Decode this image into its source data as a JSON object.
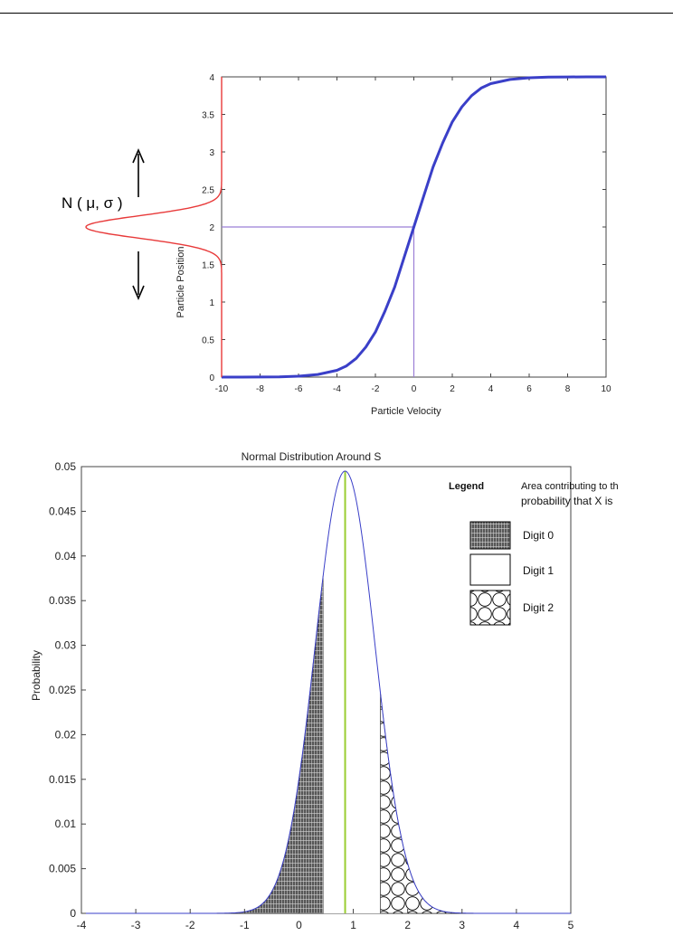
{
  "chart_data": [
    {
      "type": "line",
      "title": "",
      "xlabel": "Particle Velocity",
      "ylabel": "Particle Position",
      "xlim": [
        -10,
        10
      ],
      "ylim": [
        0,
        4
      ],
      "x_ticks": [
        "-10",
        "-8",
        "-6",
        "-4",
        "-2",
        "0",
        "2",
        "4",
        "6",
        "8",
        "10"
      ],
      "y_ticks": [
        "0",
        "0.5",
        "1",
        "1.5",
        "2",
        "2.5",
        "3",
        "3.5",
        "4"
      ],
      "grid": false,
      "series": [
        {
          "x": [
            -10,
            -9,
            -8,
            -7,
            -6,
            -5,
            -4,
            -3.5,
            -3,
            -2.5,
            -2,
            -1.5,
            -1,
            -0.5,
            0,
            0.5,
            1,
            1.5,
            2,
            2.5,
            3,
            3.5,
            4,
            5,
            6,
            7,
            8,
            9,
            10
          ],
          "y": [
            0,
            0,
            0.001,
            0.004,
            0.012,
            0.035,
            0.09,
            0.15,
            0.25,
            0.4,
            0.6,
            0.88,
            1.2,
            1.6,
            2.0,
            2.4,
            2.8,
            3.12,
            3.4,
            3.6,
            3.75,
            3.85,
            3.91,
            3.965,
            3.988,
            3.996,
            3.999,
            4,
            4
          ],
          "color": "#3a3fc8"
        }
      ],
      "reference_lines": [
        {
          "x0": -10,
          "y0": 2,
          "x1": 0,
          "y1": 2,
          "color": "#9b7fd6"
        },
        {
          "x0": 0,
          "y0": 0,
          "x1": 0,
          "y1": 2,
          "color": "#9b7fd6"
        }
      ],
      "side_distribution": {
        "label": "N ( μ, σ )",
        "center": 2,
        "sigma": 0.15,
        "color": "#e83a3a"
      }
    },
    {
      "type": "area",
      "title": "Normal Distribution Around S",
      "xlabel": "",
      "ylabel": "Probability",
      "xlim": [
        -4,
        5
      ],
      "ylim": [
        0,
        0.05
      ],
      "x_ticks": [
        "-4",
        "-3",
        "-2",
        "-1",
        "0",
        "1",
        "2",
        "3",
        "4",
        "5"
      ],
      "y_ticks": [
        "0",
        "0.005",
        "0.01",
        "0.015",
        "0.02",
        "0.025",
        "0.03",
        "0.035",
        "0.04",
        "0.045",
        "0.05"
      ],
      "grid": false,
      "curve": {
        "mean": 0.85,
        "sd": 0.55,
        "peak": 0.0495,
        "color": "#3a3fc8"
      },
      "marker_line": {
        "x": 0.85,
        "color": "#9acd32"
      },
      "regions": [
        {
          "name": "Digit 0",
          "from": -4,
          "to": 0.45,
          "pattern": "dense-hatch"
        },
        {
          "name": "Digit 1",
          "from": 0.45,
          "to": 1.5,
          "pattern": "blank"
        },
        {
          "name": "Digit 2",
          "from": 1.5,
          "to": 5,
          "pattern": "circles"
        }
      ],
      "legend": {
        "heading": "Legend",
        "caption_line1": "Area contributing to th",
        "caption_line2": "probability that X is",
        "items": [
          "Digit 0",
          "Digit 1",
          "Digit 2"
        ],
        "placement": "top-right"
      }
    }
  ]
}
